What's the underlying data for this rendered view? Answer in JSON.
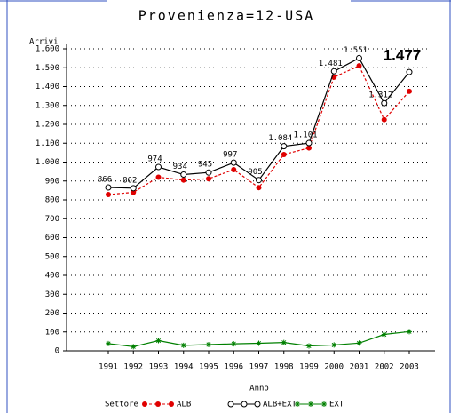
{
  "chart_data": {
    "type": "line",
    "title": "Provenienza=12-USA",
    "y_label": "Arrivi",
    "x_label": "Anno",
    "legend_title": "Settore",
    "legend": "bottom",
    "grid": true,
    "categories": [
      "1991",
      "1992",
      "1993",
      "1994",
      "1995",
      "1996",
      "1997",
      "1998",
      "1999",
      "2000",
      "2001",
      "2002",
      "2003"
    ],
    "ylim": [
      0,
      1600
    ],
    "yticks": [
      0,
      100,
      200,
      300,
      400,
      500,
      600,
      700,
      800,
      900,
      {
        "value": 1000,
        "label": "1.000"
      },
      {
        "value": 1100,
        "label": "1.100"
      },
      {
        "value": 1200,
        "label": "1.200"
      },
      {
        "value": 1300,
        "label": "1.300"
      },
      {
        "value": 1400,
        "label": "1.400"
      },
      {
        "value": 1500,
        "label": "1.500"
      },
      {
        "value": 1600,
        "label": "1.600"
      }
    ],
    "series": [
      {
        "name": "ALB",
        "color": "#e00000",
        "marker": "filled-circle",
        "dashed": true,
        "values": [
          828,
          840,
          920,
          905,
          912,
          960,
          865,
          1040,
          1075,
          1450,
          1510,
          1225,
          1375
        ]
      },
      {
        "name": "ALB+EXT",
        "color": "#000000",
        "marker": "open-circle",
        "dashed": false,
        "values": [
          866,
          862,
          974,
          934,
          945,
          997,
          905,
          1084,
          1101,
          1481,
          1551,
          1312,
          1477
        ],
        "value_labels": [
          "866",
          "862",
          "974",
          "934",
          "945",
          "997",
          "905",
          "1.084",
          "1.101",
          "1.481",
          "1.551",
          "1.312",
          "1.477"
        ]
      },
      {
        "name": "EXT",
        "color": "#008000",
        "marker": "star",
        "dashed": false,
        "values": [
          38,
          22,
          54,
          29,
          33,
          37,
          40,
          44,
          26,
          31,
          41,
          87,
          102
        ]
      }
    ]
  }
}
